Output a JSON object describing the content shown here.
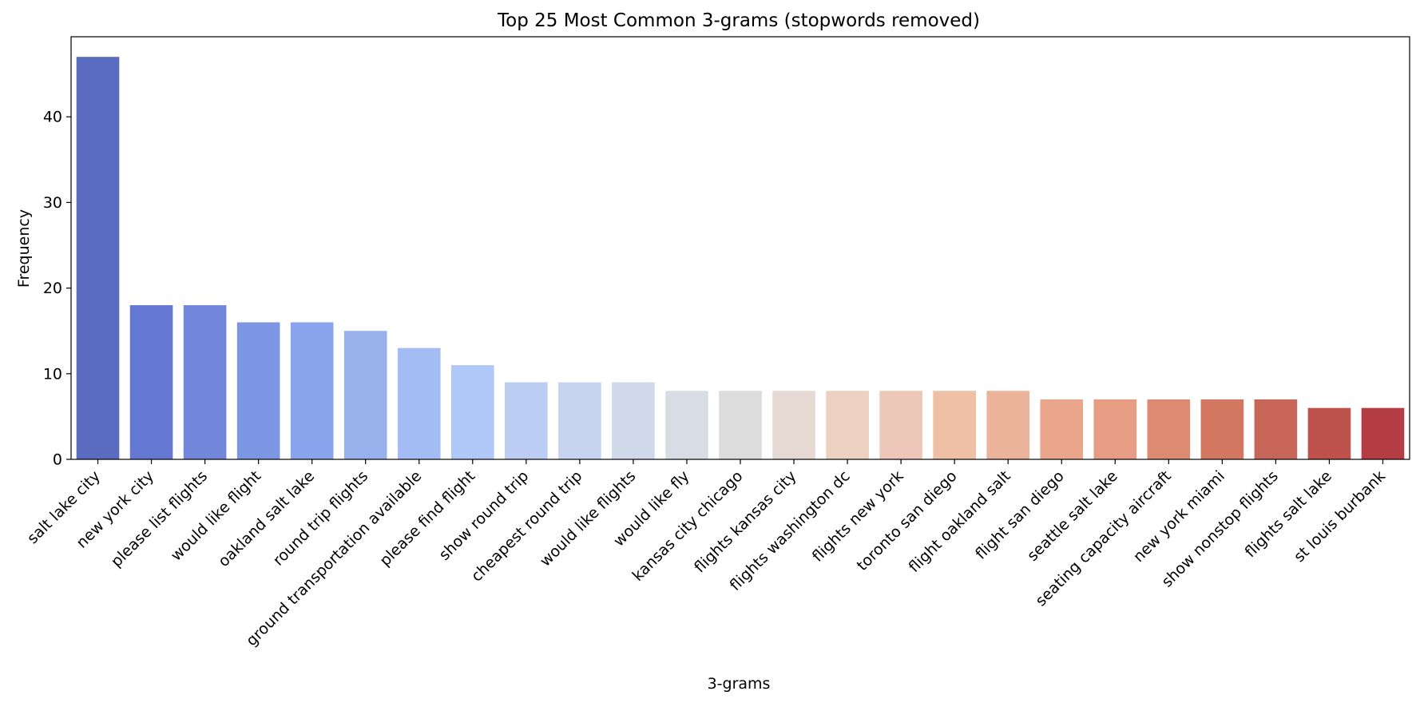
{
  "chart_data": {
    "type": "bar",
    "title": "Top 25 Most Common 3-grams (stopwords removed)",
    "xlabel": "3-grams",
    "ylabel": "Frequency",
    "ylim": [
      0,
      49.35
    ],
    "yticks": [
      "0",
      "10",
      "20",
      "30",
      "40"
    ],
    "grid": false,
    "categories": [
      "salt lake city",
      "new york city",
      "please list flights",
      "would like flight",
      "oakland salt lake",
      "round trip flights",
      "ground transportation available",
      "please find flight",
      "show round trip",
      "cheapest round trip",
      "would like flights",
      "would like fly",
      "kansas city chicago",
      "flights kansas city",
      "flights washington dc",
      "flights new york",
      "toronto san diego",
      "flight oakland salt",
      "flight san diego",
      "seattle salt lake",
      "seating capacity aircraft",
      "new york miami",
      "show nonstop flights",
      "flights salt lake",
      "st louis burbank"
    ],
    "values": [
      47,
      18,
      18,
      16,
      16,
      15,
      13,
      11,
      9,
      9,
      9,
      8,
      8,
      8,
      8,
      8,
      8,
      8,
      7,
      7,
      7,
      7,
      7,
      6,
      6
    ],
    "colors": [
      "#5a6bc0",
      "#6477d2",
      "#7287da",
      "#7d96e4",
      "#89a3ec",
      "#98b0ec",
      "#a3bdf4",
      "#b0c8f7",
      "#bbcdf2",
      "#c6d4f0",
      "#cfd9ea",
      "#d8dde5",
      "#dddcdc",
      "#e6d9d4",
      "#ecd0c0",
      "#edc8b8",
      "#efbfa6",
      "#ecb39b",
      "#e9a68d",
      "#e79d84",
      "#dd8a73",
      "#d47761",
      "#c76558",
      "#bd524c",
      "#b33d43"
    ]
  }
}
